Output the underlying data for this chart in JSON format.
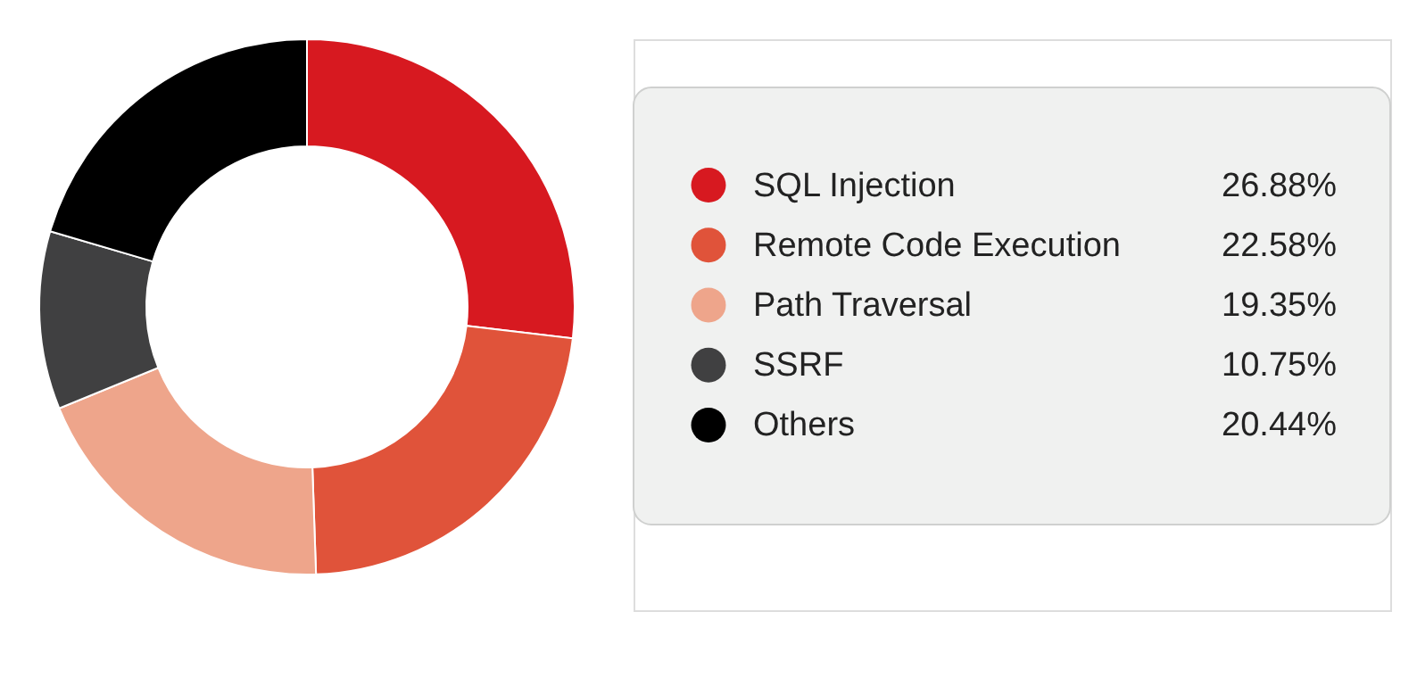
{
  "chart_data": {
    "type": "donut",
    "categories": [
      "SQL Injection",
      "Remote Code Execution",
      "Path Traversal",
      "SSRF",
      "Others"
    ],
    "values": [
      26.88,
      22.58,
      19.35,
      10.75,
      20.44
    ],
    "value_labels": [
      "26.88%",
      "22.58%",
      "19.35%",
      "10.75%",
      "20.44%"
    ],
    "colors": [
      "#d71920",
      "#e0533a",
      "#eea58b",
      "#404041",
      "#000000"
    ],
    "legend": "right"
  }
}
